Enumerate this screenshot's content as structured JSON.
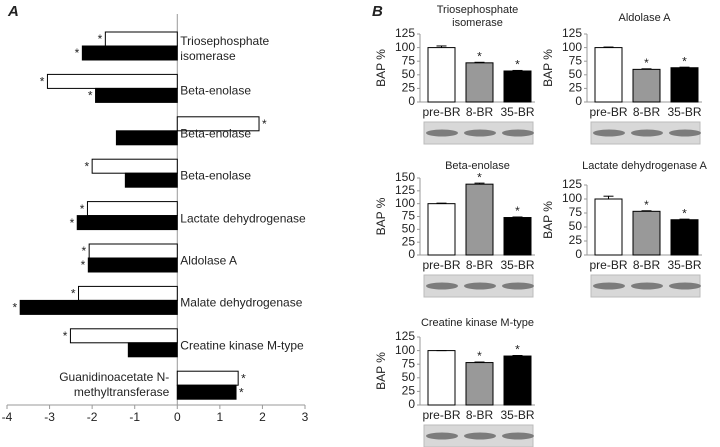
{
  "chart_data": [
    {
      "type": "hbar",
      "panel": "A",
      "categories": [
        "Triosephosphate isomerase",
        "Beta-enolase",
        "Beta-enolase",
        "Beta-enolase",
        "Lactate dehydrogenase",
        "Aldolase A",
        "Malate dehydrogenase",
        "Creatine kinase M-type",
        "Guanidinoacetate N-methyltransferase"
      ],
      "series": [
        {
          "color": "#ffffff",
          "values": [
            -1.69,
            -3.05,
            1.92,
            -2.0,
            -2.11,
            -2.07,
            -2.32,
            -2.51,
            1.43
          ],
          "significance": [
            "*",
            "*",
            "*",
            "*",
            "*",
            "*",
            "*",
            "*",
            "*"
          ]
        },
        {
          "color": "#000000",
          "values": [
            -2.23,
            -1.92,
            -1.43,
            -1.22,
            -2.35,
            -2.09,
            -3.69,
            -1.15,
            1.38
          ],
          "significance": [
            "*",
            "*",
            null,
            null,
            "*",
            "*",
            "*",
            null,
            "*"
          ]
        }
      ],
      "xlim": [
        -4,
        3
      ],
      "xticks": [
        -4,
        -3,
        -2,
        -1,
        0,
        1,
        2,
        3
      ]
    },
    {
      "type": "bar",
      "panel": "B",
      "title": "Triosephosphate isomerase",
      "ylabel": "BAP %",
      "categories": [
        "pre-BR",
        "8-BR",
        "35-BR"
      ],
      "values": [
        100,
        72,
        57
      ],
      "errors": [
        3,
        1,
        1
      ],
      "colors": [
        "#ffffff",
        "#999999",
        "#000000"
      ],
      "significance": [
        null,
        "*",
        "*"
      ],
      "ylim": [
        0,
        125
      ],
      "yticks": [
        0,
        25,
        50,
        75,
        100,
        125
      ]
    },
    {
      "type": "bar",
      "title": "Aldolase A",
      "ylabel": "BAP %",
      "categories": [
        "pre-BR",
        "8-BR",
        "35-BR"
      ],
      "values": [
        100,
        60,
        63
      ],
      "errors": [
        1,
        1,
        1
      ],
      "colors": [
        "#ffffff",
        "#999999",
        "#000000"
      ],
      "significance": [
        null,
        "*",
        "*"
      ],
      "ylim": [
        0,
        125
      ],
      "yticks": [
        0,
        25,
        50,
        75,
        100,
        125
      ]
    },
    {
      "type": "bar",
      "title": "Beta-enolase",
      "ylabel": "BAP %",
      "categories": [
        "pre-BR",
        "8-BR",
        "35-BR"
      ],
      "values": [
        100,
        138,
        73
      ],
      "errors": [
        1,
        2,
        1
      ],
      "colors": [
        "#ffffff",
        "#999999",
        "#000000"
      ],
      "significance": [
        null,
        "*",
        "*"
      ],
      "ylim": [
        0,
        150
      ],
      "yticks": [
        0,
        25,
        50,
        75,
        100,
        125,
        150
      ]
    },
    {
      "type": "bar",
      "title": "Lactate dehydrogenase A",
      "ylabel": "BAP %",
      "categories": [
        "pre-BR",
        "8-BR",
        "35-BR"
      ],
      "values": [
        100,
        78,
        63
      ],
      "errors": [
        5,
        1,
        1
      ],
      "colors": [
        "#ffffff",
        "#999999",
        "#000000"
      ],
      "significance": [
        null,
        "*",
        "*"
      ],
      "ylim": [
        0,
        125
      ],
      "yticks": [
        0,
        25,
        50,
        75,
        100,
        125
      ]
    },
    {
      "type": "bar",
      "title": "Creatine kinase M-type",
      "ylabel": "BAP %",
      "categories": [
        "pre-BR",
        "8-BR",
        "35-BR"
      ],
      "values": [
        100,
        78,
        90
      ],
      "errors": [
        0,
        1,
        1
      ],
      "colors": [
        "#ffffff",
        "#999999",
        "#000000"
      ],
      "significance": [
        null,
        "*",
        "*"
      ],
      "ylim": [
        0,
        125
      ],
      "yticks": [
        0,
        25,
        50,
        75,
        100,
        125
      ]
    }
  ]
}
